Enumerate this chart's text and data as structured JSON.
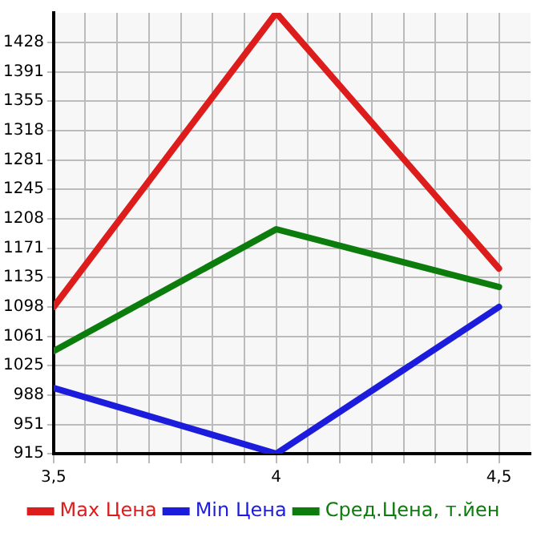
{
  "chart_data": {
    "type": "line",
    "x": [
      3.5,
      4,
      4.5
    ],
    "series": [
      {
        "name": "Max Цена",
        "color": "#dd1c1c",
        "values": [
          1098,
          1465,
          1146
        ]
      },
      {
        "name": "Min Цена",
        "color": "#1c1cdd",
        "values": [
          997,
          915,
          1098
        ]
      },
      {
        "name": "Сред.Цена, т.йен",
        "color": "#0c7c0c",
        "values": [
          1043,
          1195,
          1123
        ]
      }
    ],
    "xlim": [
      3.5,
      4.571
    ],
    "xticks": [
      {
        "value": 3.5,
        "label": "3,5"
      },
      {
        "value": 3.571,
        "label": null
      },
      {
        "value": 3.643,
        "label": null
      },
      {
        "value": 3.714,
        "label": null
      },
      {
        "value": 3.786,
        "label": null
      },
      {
        "value": 3.857,
        "label": null
      },
      {
        "value": 3.929,
        "label": null
      },
      {
        "value": 4,
        "label": "4"
      },
      {
        "value": 4.071,
        "label": null
      },
      {
        "value": 4.143,
        "label": null
      },
      {
        "value": 4.214,
        "label": null
      },
      {
        "value": 4.286,
        "label": null
      },
      {
        "value": 4.357,
        "label": null
      },
      {
        "value": 4.429,
        "label": null
      },
      {
        "value": 4.5,
        "label": "4,5"
      }
    ],
    "ylim": [
      915,
      1465
    ],
    "yticks": [
      915,
      951,
      988,
      1025,
      1061,
      1098,
      1135,
      1171,
      1208,
      1245,
      1281,
      1318,
      1355,
      1391,
      1428
    ],
    "grid": true,
    "legend": "bottom",
    "marker": "none",
    "line_style": "solid"
  }
}
